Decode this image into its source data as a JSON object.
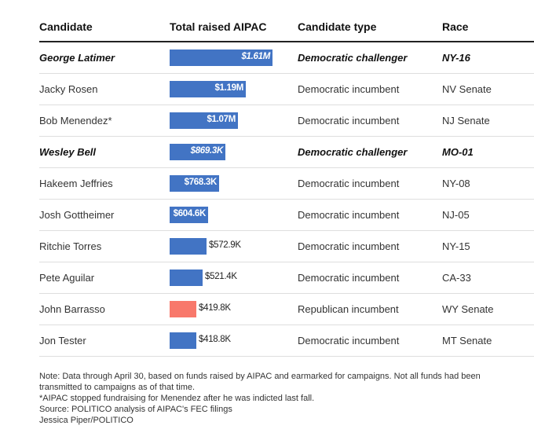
{
  "headers": {
    "candidate": "Candidate",
    "total": "Total raised AIPAC",
    "type": "Candidate type",
    "race": "Race"
  },
  "colors": {
    "democratic": "#4274c4",
    "republican": "#f8786b"
  },
  "chart_data": {
    "type": "bar",
    "orientation": "horizontal",
    "unit": "USD",
    "xlim": [
      0,
      1610000
    ],
    "rows": [
      {
        "candidate": "George Latimer",
        "value": 1610000,
        "label": "$1.61M",
        "type": "Democratic challenger",
        "race": "NY-16",
        "party": "democratic",
        "highlight": true
      },
      {
        "candidate": "Jacky Rosen",
        "value": 1190000,
        "label": "$1.19M",
        "type": "Democratic incumbent",
        "race": "NV Senate",
        "party": "democratic",
        "highlight": false
      },
      {
        "candidate": "Bob Menendez*",
        "value": 1070000,
        "label": "$1.07M",
        "type": "Democratic incumbent",
        "race": "NJ Senate",
        "party": "democratic",
        "highlight": false
      },
      {
        "candidate": "Wesley Bell",
        "value": 869300,
        "label": "$869.3K",
        "type": "Democratic challenger",
        "race": "MO-01",
        "party": "democratic",
        "highlight": true
      },
      {
        "candidate": "Hakeem Jeffries",
        "value": 768300,
        "label": "$768.3K",
        "type": "Democratic incumbent",
        "race": "NY-08",
        "party": "democratic",
        "highlight": false
      },
      {
        "candidate": "Josh Gottheimer",
        "value": 604600,
        "label": "$604.6K",
        "type": "Democratic incumbent",
        "race": "NJ-05",
        "party": "democratic",
        "highlight": false
      },
      {
        "candidate": "Ritchie Torres",
        "value": 572900,
        "label": "$572.9K",
        "type": "Democratic incumbent",
        "race": "NY-15",
        "party": "democratic",
        "highlight": false
      },
      {
        "candidate": "Pete Aguilar",
        "value": 521400,
        "label": "$521.4K",
        "type": "Democratic incumbent",
        "race": "CA-33",
        "party": "democratic",
        "highlight": false
      },
      {
        "candidate": "John Barrasso",
        "value": 419800,
        "label": "$419.8K",
        "type": "Republican incumbent",
        "race": "WY Senate",
        "party": "republican",
        "highlight": false
      },
      {
        "candidate": "Jon Tester",
        "value": 418800,
        "label": "$418.8K",
        "type": "Democratic incumbent",
        "race": "MT Senate",
        "party": "democratic",
        "highlight": false
      }
    ]
  },
  "notes": [
    "Note: Data through April 30, based on funds raised by AIPAC and earmarked for campaigns. Not all funds had been",
    "transmitted to campaigns as of that time.",
    "*AIPAC stopped fundraising for Menendez after he was indicted last fall.",
    "Source: POLITICO analysis of AIPAC's FEC filings",
    "Jessica Piper/POLITICO"
  ]
}
